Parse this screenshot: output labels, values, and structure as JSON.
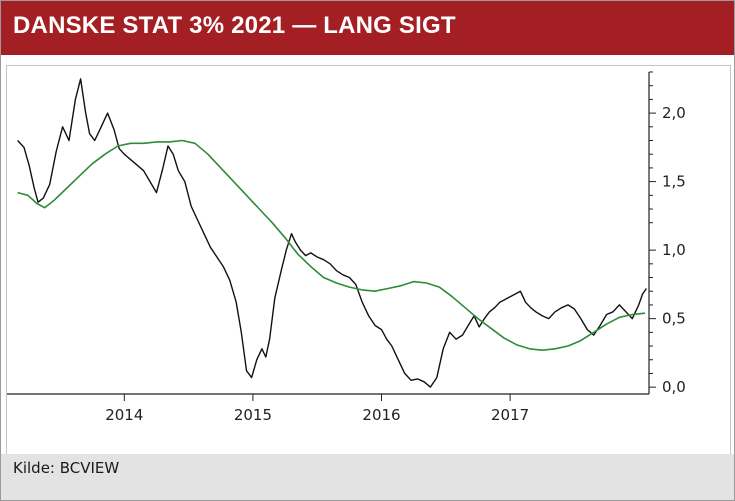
{
  "header": {
    "title": "DANSKE STAT 3% 2021 — LANG SIGT"
  },
  "footer": {
    "source": "Kilde: BCVIEW"
  },
  "colors": {
    "header_bg": "#a31f24",
    "price_line": "#111111",
    "average_line": "#2e8b3a",
    "footer_bg": "#e3e3e3"
  },
  "chart_data": {
    "type": "line",
    "title": "DANSKE STAT 3% 2021 — LANG SIGT",
    "xlabel": "",
    "ylabel": "",
    "xlim": [
      2013.15,
      2018.08
    ],
    "ylim": [
      -0.05,
      2.3
    ],
    "y_ticks": [
      0.0,
      0.5,
      1.0,
      1.5,
      2.0
    ],
    "y_tick_labels": [
      "0,0",
      "0,5",
      "1,0",
      "1,5",
      "2,0"
    ],
    "x_ticks": [
      2014,
      2015,
      2016,
      2017
    ],
    "x_tick_labels": [
      "2014",
      "2015",
      "2016",
      "2017"
    ],
    "y_axis_position": "right",
    "grid": false,
    "legend": "none",
    "series": [
      {
        "x": [
          2013.17,
          2013.22,
          2013.26,
          2013.3,
          2013.33,
          2013.37,
          2013.42,
          2013.47,
          2013.52,
          2013.57,
          2013.62,
          2013.66,
          2013.7,
          2013.73,
          2013.77,
          2013.82,
          2013.87,
          2013.92,
          2013.96,
          2014.0,
          2014.05,
          2014.1,
          2014.15,
          2014.2,
          2014.25,
          2014.3,
          2014.34,
          2014.38,
          2014.42,
          2014.47,
          2014.52,
          2014.57,
          2014.62,
          2014.67,
          2014.72,
          2014.77,
          2014.82,
          2014.87,
          2014.91,
          2014.95,
          2014.99,
          2015.03,
          2015.07,
          2015.1,
          2015.13,
          2015.17,
          2015.22,
          2015.26,
          2015.3,
          2015.33,
          2015.37,
          2015.41,
          2015.45,
          2015.5,
          2015.55,
          2015.6,
          2015.65,
          2015.7,
          2015.75,
          2015.8,
          2015.85,
          2015.9,
          2015.95,
          2016.0,
          2016.04,
          2016.08,
          2016.13,
          2016.18,
          2016.23,
          2016.28,
          2016.33,
          2016.38,
          2016.43,
          2016.48,
          2016.53,
          2016.58,
          2016.63,
          2016.68,
          2016.72,
          2016.76,
          2016.8,
          2016.84,
          2016.88,
          2016.92,
          2016.96,
          2017.0,
          2017.04,
          2017.08,
          2017.12,
          2017.16,
          2017.2,
          2017.25,
          2017.3,
          2017.35,
          2017.4,
          2017.45,
          2017.5,
          2017.55,
          2017.6,
          2017.65,
          2017.7,
          2017.75,
          2017.8,
          2017.85,
          2017.9,
          2017.95,
          2018.0,
          2018.03,
          2018.06
        ],
        "values": [
          1.8,
          1.75,
          1.62,
          1.45,
          1.35,
          1.38,
          1.48,
          1.72,
          1.9,
          1.8,
          2.1,
          2.25,
          2.0,
          1.85,
          1.8,
          1.9,
          2.0,
          1.88,
          1.74,
          1.7,
          1.66,
          1.62,
          1.58,
          1.5,
          1.42,
          1.6,
          1.76,
          1.7,
          1.58,
          1.5,
          1.32,
          1.22,
          1.12,
          1.02,
          0.95,
          0.88,
          0.78,
          0.62,
          0.4,
          0.12,
          0.07,
          0.2,
          0.28,
          0.22,
          0.35,
          0.65,
          0.85,
          1.0,
          1.12,
          1.06,
          1.0,
          0.96,
          0.98,
          0.95,
          0.93,
          0.9,
          0.85,
          0.82,
          0.8,
          0.75,
          0.62,
          0.52,
          0.45,
          0.42,
          0.35,
          0.3,
          0.2,
          0.1,
          0.05,
          0.06,
          0.04,
          0.0,
          0.07,
          0.28,
          0.4,
          0.35,
          0.38,
          0.46,
          0.52,
          0.44,
          0.5,
          0.55,
          0.58,
          0.62,
          0.64,
          0.66,
          0.68,
          0.7,
          0.62,
          0.58,
          0.55,
          0.52,
          0.5,
          0.55,
          0.58,
          0.6,
          0.57,
          0.5,
          0.42,
          0.38,
          0.45,
          0.53,
          0.55,
          0.6,
          0.55,
          0.5,
          0.6,
          0.68,
          0.72
        ]
      },
      {
        "x": [
          2013.17,
          2013.25,
          2013.32,
          2013.38,
          2013.45,
          2013.55,
          2013.65,
          2013.75,
          2013.85,
          2013.95,
          2014.05,
          2014.15,
          2014.25,
          2014.35,
          2014.45,
          2014.55,
          2014.65,
          2014.75,
          2014.85,
          2014.95,
          2015.05,
          2015.15,
          2015.25,
          2015.35,
          2015.45,
          2015.55,
          2015.65,
          2015.75,
          2015.85,
          2015.95,
          2016.05,
          2016.15,
          2016.25,
          2016.35,
          2016.45,
          2016.55,
          2016.65,
          2016.75,
          2016.85,
          2016.95,
          2017.05,
          2017.15,
          2017.25,
          2017.35,
          2017.45,
          2017.55,
          2017.65,
          2017.75,
          2017.85,
          2017.95,
          2018.05
        ],
        "values": [
          1.42,
          1.4,
          1.34,
          1.31,
          1.36,
          1.45,
          1.54,
          1.63,
          1.7,
          1.76,
          1.78,
          1.78,
          1.79,
          1.79,
          1.8,
          1.78,
          1.7,
          1.6,
          1.5,
          1.4,
          1.3,
          1.2,
          1.09,
          0.97,
          0.88,
          0.8,
          0.76,
          0.73,
          0.71,
          0.7,
          0.72,
          0.74,
          0.77,
          0.76,
          0.73,
          0.66,
          0.58,
          0.5,
          0.43,
          0.36,
          0.31,
          0.28,
          0.27,
          0.28,
          0.3,
          0.34,
          0.4,
          0.46,
          0.51,
          0.53,
          0.54
        ]
      }
    ]
  }
}
